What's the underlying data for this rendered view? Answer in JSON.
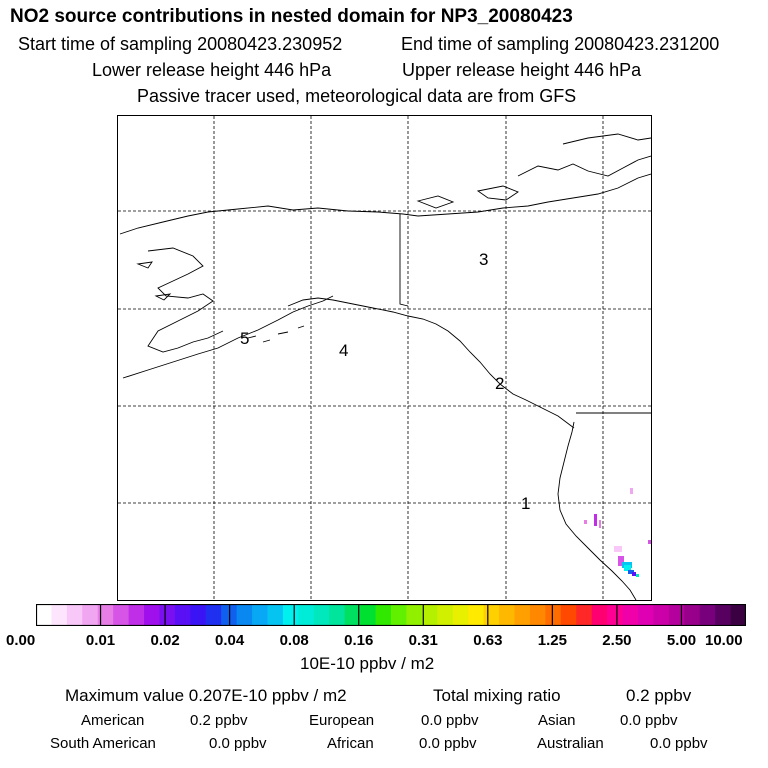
{
  "title": "NO2 source contributions in nested domain for NP3_20080423",
  "header": {
    "start_time": "Start time of sampling 20080423.230952",
    "end_time": "End time of sampling 20080423.231200",
    "lower_height": "Lower release height  446 hPa",
    "upper_height": "Upper release height  446 hPa",
    "tracer_note": "Passive tracer used, meteorological data are from GFS"
  },
  "map": {
    "region_labels": [
      "1",
      "2",
      "3",
      "4",
      "5"
    ]
  },
  "chart_data": {
    "type": "heatmap",
    "colorbar": {
      "tick_labels": [
        "0.00",
        "0.01",
        "0.02",
        "0.04",
        "0.08",
        "0.16",
        "0.31",
        "0.63",
        "1.25",
        "2.50",
        "5.00",
        "10.00"
      ],
      "colors": [
        "#ffffff",
        "#fde6fd",
        "#f8c8f8",
        "#f0a6f0",
        "#e67ee6",
        "#d655e6",
        "#c02ee8",
        "#a010ec",
        "#7a10f0",
        "#5a10f4",
        "#3a14f4",
        "#2030f0",
        "#1060f0",
        "#0a88f2",
        "#08a8f4",
        "#06c4f2",
        "#00f0f0",
        "#00ecd8",
        "#00e8bc",
        "#00e49c",
        "#00e060",
        "#00e030",
        "#30e800",
        "#60f000",
        "#90f000",
        "#b4f000",
        "#d0f000",
        "#e8f000",
        "#ffea00",
        "#ffd000",
        "#ffb800",
        "#ffa000",
        "#ff8800",
        "#ff6c00",
        "#ff4800",
        "#ff2828",
        "#ff0070",
        "#ff0094",
        "#f000a8",
        "#e000b4",
        "#cc00a8",
        "#b4009c",
        "#98008c",
        "#78007c",
        "#580060",
        "#3a0042"
      ],
      "unit": "10E-10 ppbv / m2"
    },
    "max_value": "Maximum value  0.207E-10 ppbv / m2",
    "total_label": "Total mixing ratio",
    "total_value": "0.2 ppbv",
    "regions": [
      {
        "name": "American",
        "value": "0.2 ppbv"
      },
      {
        "name": "European",
        "value": "0.0 ppbv"
      },
      {
        "name": "Asian",
        "value": "0.0 ppbv"
      },
      {
        "name": "South American",
        "value": "0.0 ppbv"
      },
      {
        "name": "African",
        "value": "0.0 ppbv"
      },
      {
        "name": "Australian",
        "value": "0.0 ppbv"
      }
    ]
  }
}
